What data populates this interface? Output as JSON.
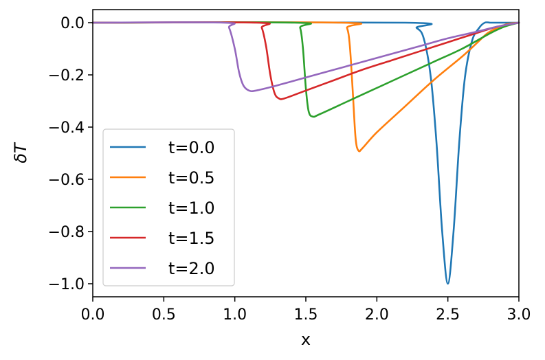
{
  "chart_data": {
    "type": "line",
    "title": "",
    "xlabel": "x",
    "ylabel": "δT",
    "xlim": [
      0.0,
      3.0
    ],
    "ylim": [
      -1.05,
      0.05
    ],
    "xticks": [
      "0.0",
      "0.5",
      "1.0",
      "1.5",
      "2.0",
      "2.5",
      "3.0"
    ],
    "yticks": [
      "0.0",
      "−0.2",
      "−0.4",
      "−0.6",
      "−0.8",
      "−1.0"
    ],
    "grid": false,
    "legend_position": "lower-left",
    "series": [
      {
        "name": "t=0.0",
        "color": "#1f77b4",
        "x": [
          0.0,
          2.2,
          2.28,
          2.33,
          2.38,
          2.42,
          2.46,
          2.5,
          2.54,
          2.58,
          2.62,
          2.67,
          2.72,
          2.76,
          2.8,
          2.85,
          3.0
        ],
        "y": [
          0.0,
          0.0,
          -0.02,
          -0.06,
          -0.21,
          -0.46,
          -0.8,
          -1.0,
          -0.8,
          -0.46,
          -0.21,
          -0.07,
          -0.02,
          0.0,
          0.0,
          0.0,
          0.0
        ]
      },
      {
        "name": "t=0.5",
        "color": "#ff7f0e",
        "x": [
          0.0,
          1.75,
          1.79,
          1.81,
          1.83,
          1.85,
          1.87,
          1.9,
          2.0,
          2.2,
          2.4,
          2.6,
          2.7,
          2.78,
          2.85,
          2.92,
          3.0
        ],
        "y": [
          0.0,
          0.0,
          -0.02,
          -0.09,
          -0.26,
          -0.44,
          -0.49,
          -0.48,
          -0.42,
          -0.32,
          -0.22,
          -0.13,
          -0.08,
          -0.04,
          -0.02,
          -0.005,
          0.0
        ]
      },
      {
        "name": "t=1.0",
        "color": "#2ca02c",
        "x": [
          0.0,
          1.42,
          1.46,
          1.48,
          1.5,
          1.52,
          1.55,
          1.6,
          1.8,
          2.0,
          2.2,
          2.4,
          2.6,
          2.8,
          2.9,
          3.0
        ],
        "y": [
          0.0,
          0.0,
          -0.02,
          -0.1,
          -0.25,
          -0.34,
          -0.36,
          -0.35,
          -0.3,
          -0.25,
          -0.2,
          -0.15,
          -0.1,
          -0.04,
          -0.015,
          0.0
        ]
      },
      {
        "name": "t=1.5",
        "color": "#d62728",
        "x": [
          0.0,
          1.15,
          1.19,
          1.22,
          1.25,
          1.28,
          1.31,
          1.35,
          1.5,
          1.7,
          1.9,
          2.1,
          2.3,
          2.5,
          2.7,
          2.85,
          3.0
        ],
        "y": [
          0.0,
          0.0,
          -0.02,
          -0.09,
          -0.2,
          -0.27,
          -0.29,
          -0.29,
          -0.26,
          -0.22,
          -0.18,
          -0.145,
          -0.11,
          -0.075,
          -0.04,
          -0.015,
          0.0
        ]
      },
      {
        "name": "t=2.0",
        "color": "#9467bd",
        "x": [
          0.0,
          0.92,
          0.96,
          1.0,
          1.03,
          1.06,
          1.1,
          1.15,
          1.3,
          1.5,
          1.7,
          1.9,
          2.1,
          2.3,
          2.5,
          2.7,
          2.85,
          3.0
        ],
        "y": [
          0.0,
          0.0,
          -0.02,
          -0.1,
          -0.19,
          -0.24,
          -0.26,
          -0.26,
          -0.24,
          -0.21,
          -0.18,
          -0.15,
          -0.12,
          -0.09,
          -0.06,
          -0.035,
          -0.015,
          0.0
        ]
      }
    ]
  }
}
